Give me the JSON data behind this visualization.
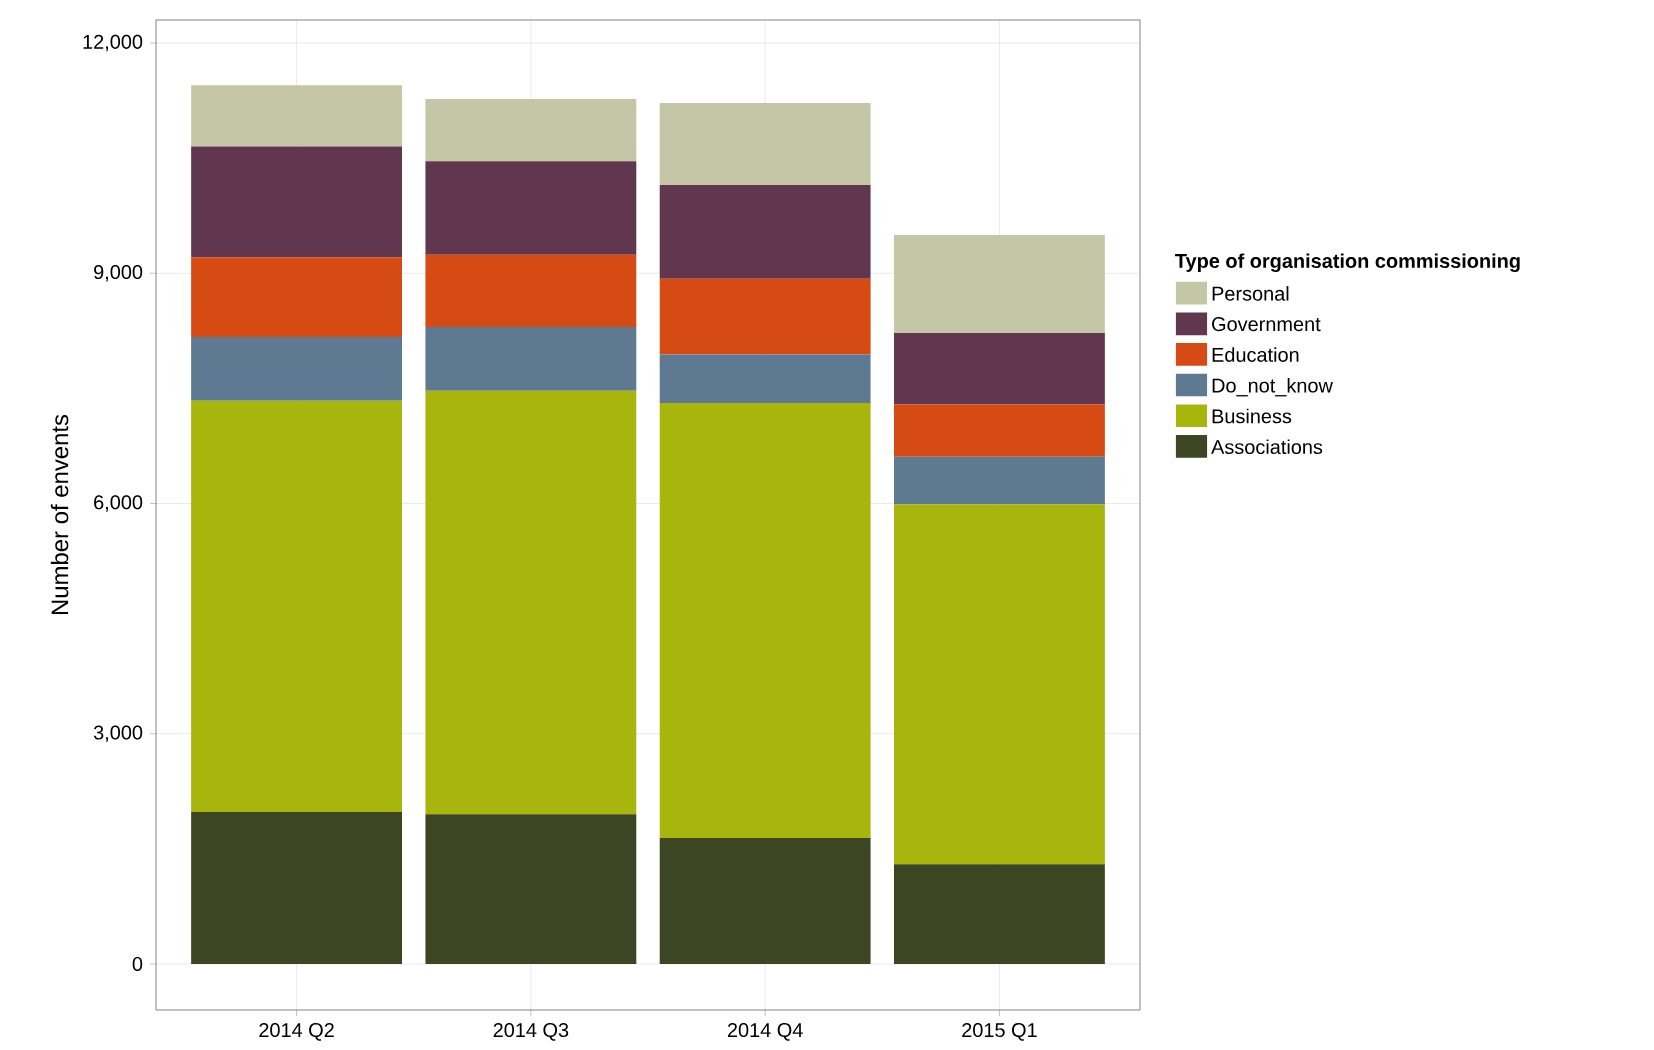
{
  "chart_data": {
    "type": "bar",
    "stacked": true,
    "ylabel": "Number of envents",
    "legend_title": "Type of organisation commissioning",
    "categories": [
      "2014 Q2",
      "2014 Q3",
      "2014 Q4",
      "2015 Q1"
    ],
    "series": [
      {
        "name": "Associations",
        "color": "#3c4622",
        "values": [
          1980,
          1950,
          1640,
          1300
        ]
      },
      {
        "name": "Business",
        "color": "#a8b50c",
        "values": [
          5360,
          5520,
          5670,
          4690
        ]
      },
      {
        "name": "Do_not_know",
        "color": "#5e7a92",
        "values": [
          830,
          830,
          630,
          620
        ]
      },
      {
        "name": "Education",
        "color": "#d64a14",
        "values": [
          1040,
          940,
          990,
          680
        ]
      },
      {
        "name": "Government",
        "color": "#61374f",
        "values": [
          1440,
          1220,
          1220,
          930
        ]
      },
      {
        "name": "Personal",
        "color": "#c5c6a6",
        "values": [
          800,
          810,
          1070,
          1280
        ]
      }
    ],
    "ylim": [
      -600,
      12300
    ],
    "yticks": [
      {
        "value": 0,
        "label": "0"
      },
      {
        "value": 3000,
        "label": "3,000"
      },
      {
        "value": 6000,
        "label": "6,000"
      },
      {
        "value": 9000,
        "label": "9,000"
      },
      {
        "value": 12000,
        "label": "12,000"
      }
    ],
    "grid": true,
    "legend": "right"
  }
}
